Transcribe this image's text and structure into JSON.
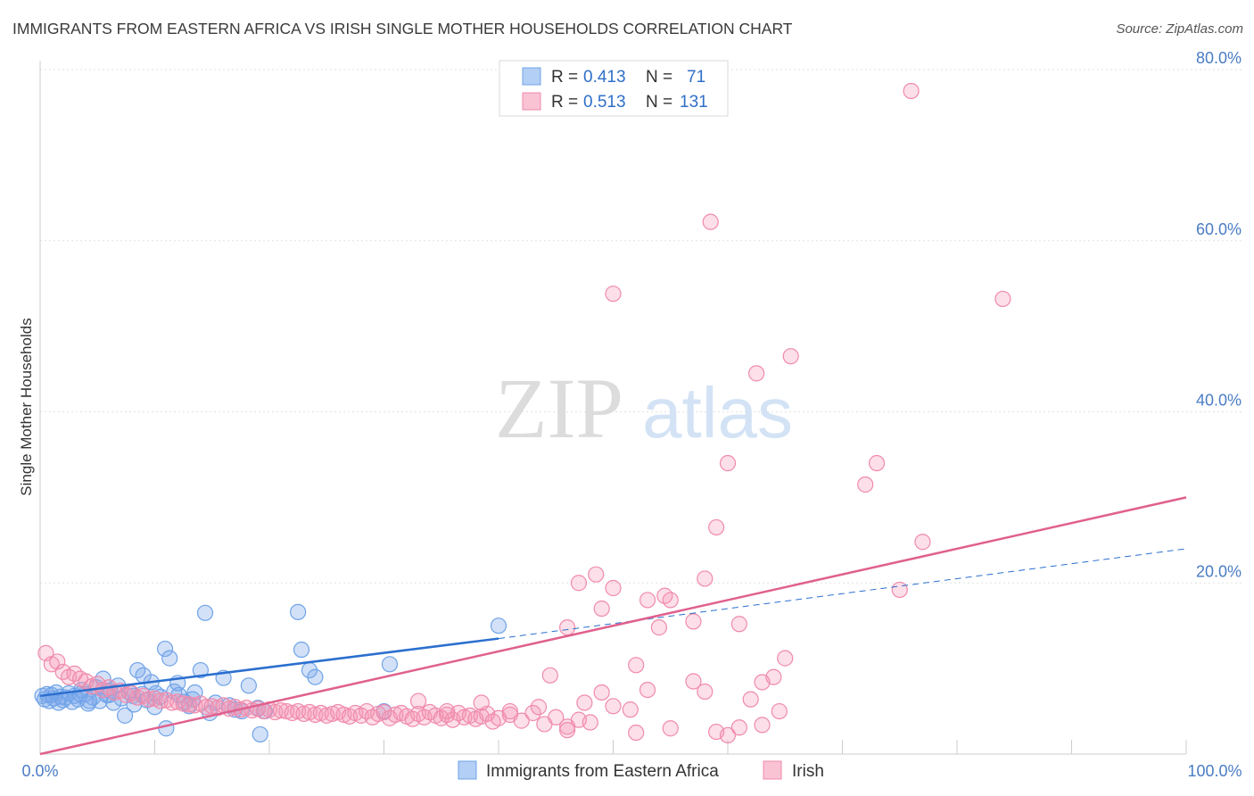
{
  "title": "IMMIGRANTS FROM EASTERN AFRICA VS IRISH SINGLE MOTHER HOUSEHOLDS CORRELATION CHART",
  "source": "Source: ZipAtlas.com",
  "watermark": {
    "zip": "ZIP",
    "atlas": "atlas"
  },
  "colors": {
    "blue": "#6fa3e8",
    "blue_line": "#2b6fcf",
    "pink": "#f08aac",
    "pink_line": "#e0608e",
    "tick": "#4a7cc4"
  },
  "legend": {
    "rows": [
      {
        "r_label": "R = ",
        "r_value": "0.413",
        "n_label": "N = ",
        "n_value": "71"
      },
      {
        "r_label": "R = ",
        "r_value": "0.513",
        "n_label": "N = ",
        "n_value": "131"
      }
    ]
  },
  "bottom_legend": [
    "Immigrants from Eastern Africa",
    "Irish"
  ],
  "chart_data": {
    "type": "scatter",
    "title": "IMMIGRANTS FROM EASTERN AFRICA VS IRISH SINGLE MOTHER HOUSEHOLDS CORRELATION CHART",
    "xlabel": "",
    "ylabel": "Single Mother Households",
    "xlim": [
      0,
      100
    ],
    "ylim": [
      0,
      80
    ],
    "x_tick_labels": [
      "0.0%",
      "100.0%"
    ],
    "y_ticks": [
      20,
      40,
      60,
      80
    ],
    "y_tick_labels": [
      "20.0%",
      "40.0%",
      "60.0%",
      "80.0%"
    ],
    "grid": true,
    "series": [
      {
        "name": "Immigrants from Eastern Africa",
        "r": 0.413,
        "n": 71,
        "trend": {
          "solid": [
            [
              0,
              6.8
            ],
            [
              40,
              13.5
            ]
          ],
          "dashed": [
            [
              40,
              13.5
            ],
            [
              100,
              24.0
            ]
          ]
        },
        "points": [
          [
            0.2,
            6.8
          ],
          [
            0.4,
            6.4
          ],
          [
            0.6,
            7.0
          ],
          [
            0.8,
            6.2
          ],
          [
            1.0,
            6.9
          ],
          [
            1.2,
            6.5
          ],
          [
            1.4,
            7.2
          ],
          [
            1.6,
            6.0
          ],
          [
            1.8,
            6.7
          ],
          [
            2.0,
            6.3
          ],
          [
            2.2,
            6.6
          ],
          [
            2.5,
            7.1
          ],
          [
            2.8,
            6.1
          ],
          [
            3.0,
            6.8
          ],
          [
            3.3,
            6.4
          ],
          [
            3.6,
            7.5
          ],
          [
            3.9,
            7.0
          ],
          [
            4.2,
            5.9
          ],
          [
            4.6,
            6.6
          ],
          [
            4.9,
            7.8
          ],
          [
            5.2,
            6.2
          ],
          [
            5.5,
            8.8
          ],
          [
            5.8,
            6.9
          ],
          [
            6.1,
            7.4
          ],
          [
            6.4,
            6.0
          ],
          [
            6.8,
            8.0
          ],
          [
            7.1,
            6.5
          ],
          [
            7.4,
            4.5
          ],
          [
            7.8,
            7.2
          ],
          [
            8.1,
            6.8
          ],
          [
            8.5,
            9.8
          ],
          [
            8.9,
            7.0
          ],
          [
            9.3,
            6.3
          ],
          [
            9.7,
            8.4
          ],
          [
            10.1,
            7.1
          ],
          [
            10.5,
            6.7
          ],
          [
            10.9,
            12.3
          ],
          [
            11.3,
            11.2
          ],
          [
            11.7,
            7.3
          ],
          [
            12.1,
            6.9
          ],
          [
            12.6,
            6.1
          ],
          [
            13.0,
            5.6
          ],
          [
            13.5,
            7.2
          ],
          [
            14.0,
            9.8
          ],
          [
            14.4,
            16.5
          ],
          [
            14.8,
            4.8
          ],
          [
            15.3,
            6.0
          ],
          [
            16.0,
            8.9
          ],
          [
            16.5,
            5.7
          ],
          [
            17.0,
            5.2
          ],
          [
            17.6,
            5.0
          ],
          [
            13.3,
            6.4
          ],
          [
            8.2,
            5.8
          ],
          [
            18.2,
            8.0
          ],
          [
            19.0,
            5.4
          ],
          [
            19.6,
            5.0
          ],
          [
            19.2,
            2.3
          ],
          [
            22.8,
            12.2
          ],
          [
            23.5,
            9.8
          ],
          [
            22.5,
            16.6
          ],
          [
            24.0,
            9.0
          ],
          [
            30.5,
            10.5
          ],
          [
            30.0,
            5.0
          ],
          [
            40.0,
            15.0
          ],
          [
            11.0,
            3.0
          ],
          [
            3.5,
            7.0
          ],
          [
            4.3,
            6.2
          ],
          [
            9.0,
            9.2
          ],
          [
            12.0,
            8.3
          ],
          [
            6.0,
            6.9
          ],
          [
            10.0,
            5.5
          ]
        ]
      },
      {
        "name": "Irish",
        "r": 0.513,
        "n": 131,
        "trend": {
          "solid": [
            [
              0,
              0.0
            ],
            [
              100,
              30.0
            ]
          ]
        },
        "points": [
          [
            0.5,
            11.8
          ],
          [
            1.0,
            10.5
          ],
          [
            1.5,
            10.8
          ],
          [
            2.0,
            9.6
          ],
          [
            2.5,
            9.0
          ],
          [
            3.0,
            9.4
          ],
          [
            3.5,
            8.8
          ],
          [
            4.0,
            8.5
          ],
          [
            4.5,
            7.9
          ],
          [
            5.0,
            8.2
          ],
          [
            5.5,
            7.5
          ],
          [
            6.0,
            7.8
          ],
          [
            6.5,
            7.2
          ],
          [
            7.0,
            7.4
          ],
          [
            7.5,
            6.9
          ],
          [
            8.0,
            7.1
          ],
          [
            8.5,
            6.6
          ],
          [
            9.0,
            6.8
          ],
          [
            9.5,
            6.4
          ],
          [
            10.0,
            6.5
          ],
          [
            10.5,
            6.2
          ],
          [
            11.0,
            6.3
          ],
          [
            11.5,
            6.0
          ],
          [
            12.0,
            6.1
          ],
          [
            12.5,
            5.9
          ],
          [
            13.0,
            5.8
          ],
          [
            13.5,
            5.7
          ],
          [
            14.0,
            5.9
          ],
          [
            14.5,
            5.5
          ],
          [
            15.0,
            5.6
          ],
          [
            15.5,
            5.4
          ],
          [
            16.0,
            5.7
          ],
          [
            16.5,
            5.3
          ],
          [
            17.0,
            5.5
          ],
          [
            17.5,
            5.2
          ],
          [
            18.0,
            5.4
          ],
          [
            18.5,
            5.1
          ],
          [
            19.0,
            5.3
          ],
          [
            19.5,
            5.0
          ],
          [
            20.0,
            5.2
          ],
          [
            20.5,
            4.9
          ],
          [
            21.0,
            5.1
          ],
          [
            21.5,
            5.0
          ],
          [
            22.0,
            4.8
          ],
          [
            22.5,
            5.0
          ],
          [
            23.0,
            4.7
          ],
          [
            23.5,
            4.9
          ],
          [
            24.0,
            4.6
          ],
          [
            24.5,
            4.8
          ],
          [
            25.0,
            4.5
          ],
          [
            25.5,
            4.7
          ],
          [
            26.0,
            4.9
          ],
          [
            26.5,
            4.6
          ],
          [
            27.0,
            4.4
          ],
          [
            27.5,
            4.8
          ],
          [
            28.0,
            4.5
          ],
          [
            28.5,
            5.0
          ],
          [
            29.0,
            4.3
          ],
          [
            29.5,
            4.7
          ],
          [
            30.0,
            4.9
          ],
          [
            30.5,
            4.2
          ],
          [
            31.0,
            4.6
          ],
          [
            31.5,
            4.8
          ],
          [
            32.0,
            4.4
          ],
          [
            32.5,
            4.1
          ],
          [
            33.0,
            4.7
          ],
          [
            33.5,
            4.3
          ],
          [
            34.0,
            4.9
          ],
          [
            34.5,
            4.5
          ],
          [
            35.0,
            4.2
          ],
          [
            35.5,
            4.6
          ],
          [
            36.0,
            4.0
          ],
          [
            36.5,
            4.8
          ],
          [
            37.0,
            4.3
          ],
          [
            37.5,
            4.5
          ],
          [
            38.0,
            4.1
          ],
          [
            38.5,
            4.4
          ],
          [
            39.0,
            4.7
          ],
          [
            39.5,
            3.8
          ],
          [
            40.0,
            4.2
          ],
          [
            41.0,
            4.6
          ],
          [
            42.0,
            3.9
          ],
          [
            43.0,
            4.8
          ],
          [
            44.0,
            3.5
          ],
          [
            45.0,
            4.3
          ],
          [
            46.0,
            3.2
          ],
          [
            47.0,
            4.0
          ],
          [
            48.0,
            3.7
          ],
          [
            33.0,
            6.2
          ],
          [
            35.5,
            5.0
          ],
          [
            38.5,
            6.0
          ],
          [
            41.0,
            5.0
          ],
          [
            43.5,
            5.5
          ],
          [
            44.5,
            9.2
          ],
          [
            46.0,
            2.8
          ],
          [
            47.5,
            6.0
          ],
          [
            49.0,
            7.2
          ],
          [
            50.0,
            5.6
          ],
          [
            51.5,
            5.2
          ],
          [
            52.0,
            2.5
          ],
          [
            53.0,
            7.5
          ],
          [
            55.0,
            3.0
          ],
          [
            57.0,
            8.5
          ],
          [
            58.0,
            7.3
          ],
          [
            59.0,
            2.6
          ],
          [
            60.0,
            2.2
          ],
          [
            61.0,
            3.1
          ],
          [
            62.0,
            6.4
          ],
          [
            63.0,
            8.4
          ],
          [
            64.0,
            9.0
          ],
          [
            65.0,
            11.2
          ],
          [
            47.0,
            20.0
          ],
          [
            46.0,
            14.8
          ],
          [
            48.5,
            21.0
          ],
          [
            49.0,
            17.0
          ],
          [
            50.0,
            19.4
          ],
          [
            52.0,
            10.4
          ],
          [
            53.0,
            18.0
          ],
          [
            54.0,
            14.8
          ],
          [
            54.5,
            18.5
          ],
          [
            55.0,
            18.0
          ],
          [
            57.0,
            15.5
          ],
          [
            58.0,
            20.5
          ],
          [
            59.0,
            26.5
          ],
          [
            60.0,
            34.0
          ],
          [
            61.0,
            15.2
          ],
          [
            62.5,
            44.5
          ],
          [
            63.0,
            3.4
          ],
          [
            64.5,
            5.0
          ],
          [
            65.5,
            46.5
          ],
          [
            72.0,
            31.5
          ],
          [
            73.0,
            34.0
          ],
          [
            75.0,
            19.2
          ],
          [
            77.0,
            24.8
          ],
          [
            50.0,
            53.8
          ],
          [
            58.5,
            62.2
          ],
          [
            76.0,
            77.5
          ],
          [
            84.0,
            53.2
          ]
        ]
      }
    ]
  }
}
